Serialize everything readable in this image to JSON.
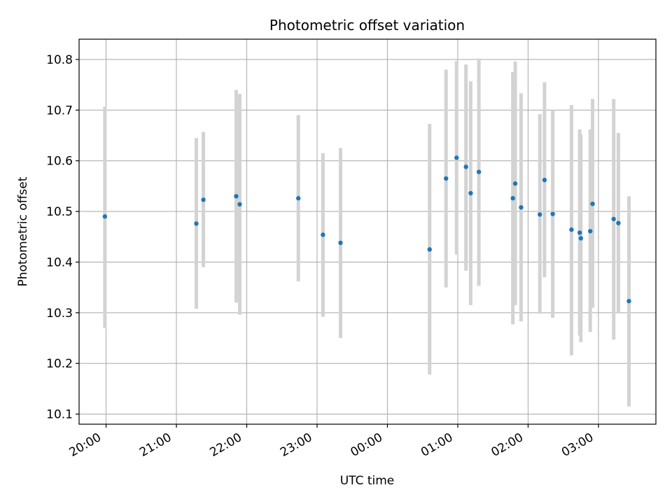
{
  "chart_data": {
    "type": "scatter",
    "title": "Photometric offset variation",
    "xlabel": "UTC time",
    "ylabel": "Photometric offset",
    "x_type": "time",
    "xlim": [
      "19:37",
      "27:49"
    ],
    "ylim": [
      10.08,
      10.84
    ],
    "grid": true,
    "x_tick_values": [
      "20:00",
      "21:00",
      "22:00",
      "23:00",
      "24:00",
      "25:00",
      "26:00",
      "27:00"
    ],
    "x_tick_labels": [
      "20:00",
      "21:00",
      "22:00",
      "23:00",
      "00:00",
      "01:00",
      "02:00",
      "03:00"
    ],
    "y_ticks": [
      10.1,
      10.2,
      10.3,
      10.4,
      10.5,
      10.6,
      10.7,
      10.8
    ],
    "y_tick_labels": [
      "10.1",
      "10.2",
      "10.3",
      "10.4",
      "10.5",
      "10.6",
      "10.7",
      "10.8"
    ],
    "series": [
      {
        "color": "#1f77b4",
        "errorbar_color": "#d3d3d3",
        "points": [
          {
            "x": "19:59",
            "y": 10.49,
            "yerr_low": 10.27,
            "yerr_high": 10.707
          },
          {
            "x": "21:17",
            "y": 10.476,
            "yerr_low": 10.308,
            "yerr_high": 10.645
          },
          {
            "x": "21:23",
            "y": 10.523,
            "yerr_low": 10.39,
            "yerr_high": 10.657
          },
          {
            "x": "21:51",
            "y": 10.53,
            "yerr_low": 10.32,
            "yerr_high": 10.74
          },
          {
            "x": "21:54",
            "y": 10.514,
            "yerr_low": 10.296,
            "yerr_high": 10.732
          },
          {
            "x": "22:44",
            "y": 10.526,
            "yerr_low": 10.362,
            "yerr_high": 10.69
          },
          {
            "x": "23:05",
            "y": 10.454,
            "yerr_low": 10.292,
            "yerr_high": 10.615
          },
          {
            "x": "23:20",
            "y": 10.438,
            "yerr_low": 10.25,
            "yerr_high": 10.625
          },
          {
            "x": "24:36",
            "y": 10.425,
            "yerr_low": 10.178,
            "yerr_high": 10.673
          },
          {
            "x": "24:50",
            "y": 10.565,
            "yerr_low": 10.35,
            "yerr_high": 10.78
          },
          {
            "x": "24:59",
            "y": 10.606,
            "yerr_low": 10.415,
            "yerr_high": 10.797
          },
          {
            "x": "25:07",
            "y": 10.588,
            "yerr_low": 10.383,
            "yerr_high": 10.79
          },
          {
            "x": "25:11",
            "y": 10.536,
            "yerr_low": 10.315,
            "yerr_high": 10.757
          },
          {
            "x": "25:18",
            "y": 10.578,
            "yerr_low": 10.353,
            "yerr_high": 10.802
          },
          {
            "x": "25:47",
            "y": 10.526,
            "yerr_low": 10.277,
            "yerr_high": 10.775
          },
          {
            "x": "25:49",
            "y": 10.555,
            "yerr_low": 10.315,
            "yerr_high": 10.796
          },
          {
            "x": "25:54",
            "y": 10.508,
            "yerr_low": 10.283,
            "yerr_high": 10.733
          },
          {
            "x": "26:10",
            "y": 10.494,
            "yerr_low": 10.298,
            "yerr_high": 10.692
          },
          {
            "x": "26:14",
            "y": 10.562,
            "yerr_low": 10.37,
            "yerr_high": 10.755
          },
          {
            "x": "26:21",
            "y": 10.495,
            "yerr_low": 10.29,
            "yerr_high": 10.7
          },
          {
            "x": "26:37",
            "y": 10.464,
            "yerr_low": 10.216,
            "yerr_high": 10.71
          },
          {
            "x": "26:44",
            "y": 10.458,
            "yerr_low": 10.255,
            "yerr_high": 10.662
          },
          {
            "x": "26:45",
            "y": 10.447,
            "yerr_low": 10.242,
            "yerr_high": 10.652
          },
          {
            "x": "26:53",
            "y": 10.461,
            "yerr_low": 10.262,
            "yerr_high": 10.662
          },
          {
            "x": "26:55",
            "y": 10.515,
            "yerr_low": 10.31,
            "yerr_high": 10.722
          },
          {
            "x": "27:13",
            "y": 10.485,
            "yerr_low": 10.247,
            "yerr_high": 10.722
          },
          {
            "x": "27:17",
            "y": 10.477,
            "yerr_low": 10.3,
            "yerr_high": 10.655
          },
          {
            "x": "27:26",
            "y": 10.323,
            "yerr_low": 10.115,
            "yerr_high": 10.53
          }
        ]
      }
    ]
  }
}
